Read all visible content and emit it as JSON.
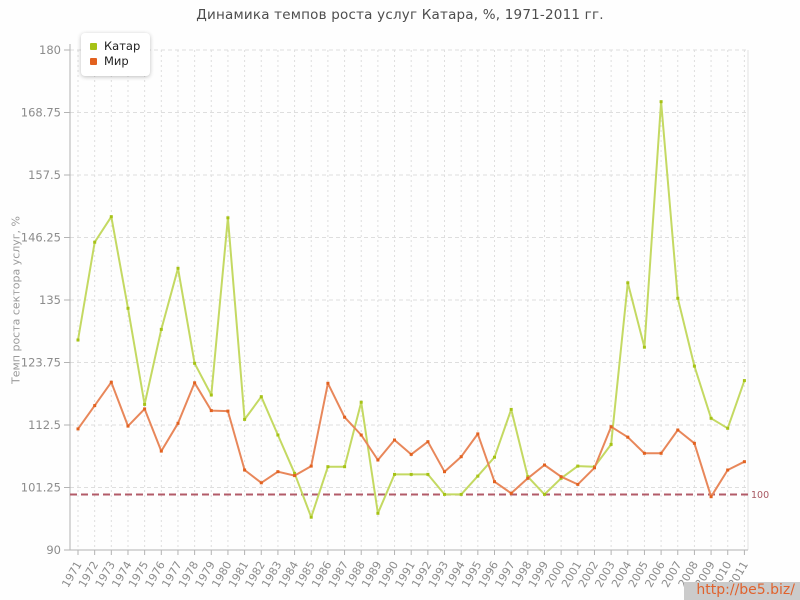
{
  "watermark": {
    "text": "http://be5.biz/"
  },
  "chart_data": {
    "type": "line",
    "title": "Динамика темпов роста услуг Катара, %, 1971-2011 гг.",
    "xlabel": "",
    "ylabel": "Темп роста сектора услуг, %",
    "ylim": [
      90,
      180
    ],
    "yticks": [
      90,
      101.25,
      112.5,
      123.75,
      135,
      146.25,
      157.5,
      168.75,
      180
    ],
    "grid": true,
    "legend_position": "top-left",
    "x": [
      1971,
      1972,
      1973,
      1974,
      1975,
      1976,
      1977,
      1978,
      1979,
      1980,
      1981,
      1982,
      1983,
      1984,
      1985,
      1986,
      1987,
      1988,
      1989,
      1990,
      1991,
      1992,
      1993,
      1994,
      1995,
      1996,
      1997,
      1998,
      1999,
      2000,
      2001,
      2002,
      2003,
      2004,
      2005,
      2006,
      2007,
      2008,
      2009,
      2010,
      2011
    ],
    "series": [
      {
        "name": "Катар",
        "line_color": "#c4d962",
        "marker_color": "#a6c216",
        "values": [
          127.8,
          145.4,
          150.0,
          133.5,
          116.2,
          129.7,
          140.7,
          123.6,
          117.9,
          149.8,
          113.5,
          117.6,
          110.7,
          103.8,
          95.9,
          105.0,
          105.0,
          116.6,
          96.6,
          103.6,
          103.6,
          103.6,
          100.0,
          100.0,
          103.3,
          106.7,
          115.3,
          103.2,
          100.0,
          102.9,
          105.1,
          105.0,
          109.0,
          138.1,
          126.5,
          170.7,
          135.3,
          123.1,
          113.7,
          111.9,
          120.5
        ]
      },
      {
        "name": "Мир",
        "line_color": "#e8875a",
        "marker_color": "#e2611f",
        "values": [
          111.8,
          116.0,
          120.2,
          112.3,
          115.4,
          107.8,
          112.8,
          120.1,
          115.1,
          115.0,
          104.4,
          102.1,
          104.1,
          103.4,
          105.1,
          120.0,
          113.9,
          110.7,
          106.2,
          109.8,
          107.2,
          109.5,
          104.1,
          106.8,
          110.9,
          102.3,
          100.2,
          102.9,
          105.3,
          103.2,
          101.8,
          104.8,
          112.2,
          110.3,
          107.4,
          107.4,
          111.6,
          109.2,
          99.6,
          104.4,
          105.9
        ]
      }
    ],
    "ref_line": {
      "value": 100,
      "label": "100",
      "line_color": "#b25b68",
      "label_color": "#a85862"
    },
    "axis_color": "#b3b3b3",
    "grid_color": "#dedede",
    "tick_label_color": "#8c8c8c"
  }
}
